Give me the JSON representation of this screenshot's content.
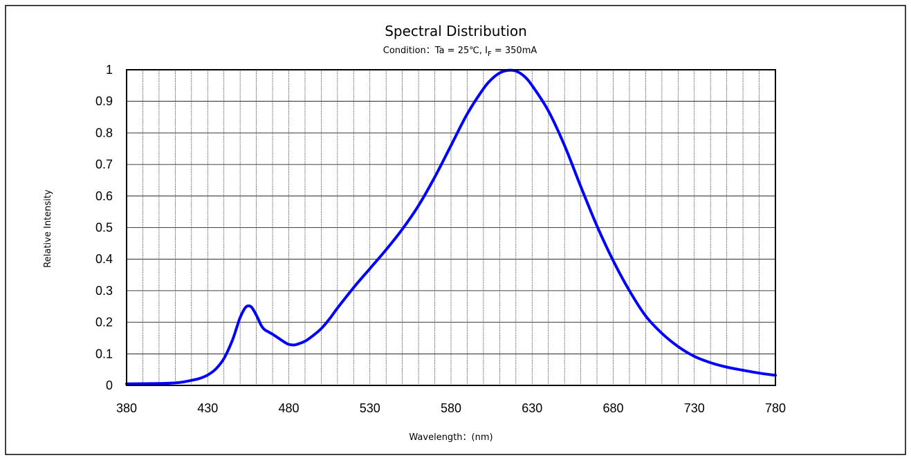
{
  "chart_data": {
    "type": "line",
    "title": "Spectral Distribution",
    "subtitle_prefix": "Condition：Ta = 25℃,  I",
    "subtitle_subscript": "F",
    "subtitle_suffix": " = 350mA",
    "xlabel": "Wavelength：(nm)",
    "ylabel": "Relative Intensity",
    "xlim": [
      380,
      780
    ],
    "ylim": [
      0,
      1
    ],
    "x_ticks": [
      "380",
      "430",
      "480",
      "530",
      "580",
      "630",
      "680",
      "730",
      "780"
    ],
    "y_ticks": [
      "0",
      "0.1",
      "0.2",
      "0.3",
      "0.4",
      "0.5",
      "0.6",
      "0.7",
      "0.8",
      "0.9",
      "1"
    ],
    "grid": true,
    "x_minor_step": 10,
    "line_color": "#0000ff",
    "series": [
      {
        "x": [
          380,
          400,
          410,
          415,
          420,
          425,
          430,
          435,
          440,
          445,
          448,
          450,
          453,
          455,
          457,
          459,
          461,
          463,
          465,
          468,
          470,
          473,
          475,
          478,
          480,
          483,
          485,
          490,
          495,
          500,
          505,
          510,
          520,
          530,
          540,
          550,
          560,
          570,
          580,
          590,
          600,
          605,
          610,
          615,
          620,
          625,
          630,
          640,
          650,
          660,
          670,
          680,
          690,
          700,
          710,
          720,
          730,
          740,
          750,
          760,
          770,
          780
        ],
        "y": [
          0.005,
          0.006,
          0.008,
          0.011,
          0.016,
          0.022,
          0.033,
          0.052,
          0.085,
          0.14,
          0.185,
          0.215,
          0.245,
          0.252,
          0.248,
          0.232,
          0.212,
          0.19,
          0.177,
          0.168,
          0.162,
          0.152,
          0.145,
          0.135,
          0.13,
          0.128,
          0.13,
          0.14,
          0.158,
          0.18,
          0.21,
          0.245,
          0.31,
          0.37,
          0.43,
          0.495,
          0.57,
          0.66,
          0.76,
          0.86,
          0.94,
          0.97,
          0.99,
          0.998,
          0.996,
          0.98,
          0.95,
          0.87,
          0.76,
          0.63,
          0.505,
          0.395,
          0.3,
          0.22,
          0.165,
          0.123,
          0.092,
          0.072,
          0.058,
          0.048,
          0.039,
          0.032
        ]
      }
    ]
  }
}
